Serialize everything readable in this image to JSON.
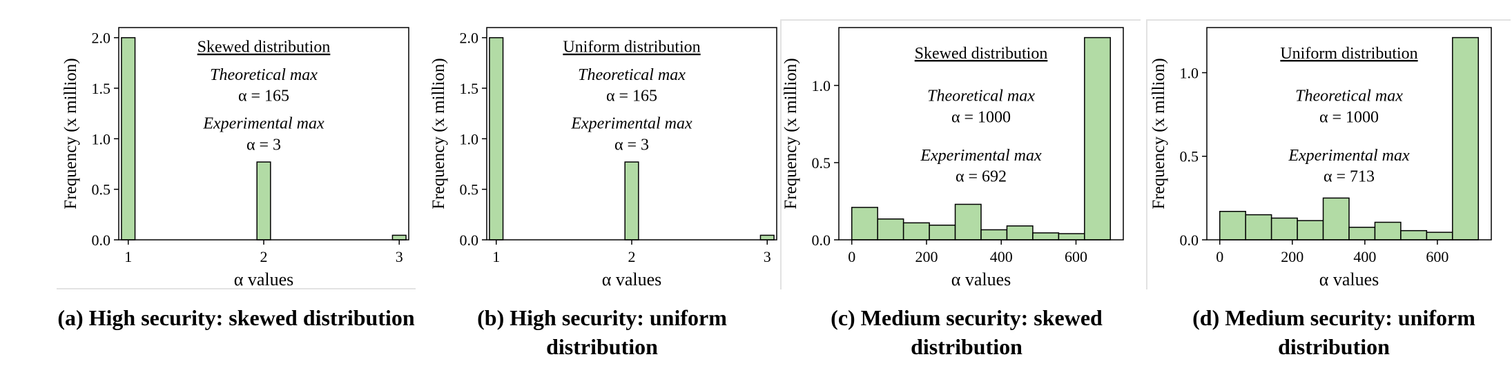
{
  "chart_data": [
    {
      "type": "bar",
      "x": [
        1,
        2,
        3
      ],
      "values": [
        2.0,
        0.77,
        0.045
      ],
      "bar_width": 0.1,
      "xlim": [
        0.93,
        3.07
      ],
      "ylim": [
        0,
        2.1
      ],
      "xticks": [
        1,
        2,
        3
      ],
      "yticks": [
        "0.0",
        "0.5",
        "1.0",
        "1.5",
        "2.0"
      ],
      "yticks_val": [
        0,
        0.5,
        1,
        1.5,
        2
      ],
      "xlabel": "α values",
      "ylabel": "Frequency (x million)",
      "inset_title": "Skewed distribution",
      "annotations": [
        "Theoretical max",
        "α = 165",
        "Experimental max",
        "α = 3"
      ],
      "bar_color": "#b2dba5",
      "grid": false
    },
    {
      "type": "bar",
      "x": [
        1,
        2,
        3
      ],
      "values": [
        2.0,
        0.77,
        0.045
      ],
      "bar_width": 0.1,
      "xlim": [
        0.93,
        3.07
      ],
      "ylim": [
        0,
        2.1
      ],
      "xticks": [
        1,
        2,
        3
      ],
      "yticks": [
        "0.0",
        "0.5",
        "1.0",
        "1.5",
        "2.0"
      ],
      "yticks_val": [
        0,
        0.5,
        1,
        1.5,
        2
      ],
      "xlabel": "α values",
      "ylabel": "Frequency (x million)",
      "inset_title": "Uniform distribution",
      "annotations": [
        "Theoretical max",
        "α = 165",
        "Experimental max",
        "α = 3"
      ],
      "bar_color": "#b2dba5",
      "grid": false
    },
    {
      "type": "histogram",
      "bin_edges": [
        0,
        69.2,
        138.4,
        207.6,
        276.8,
        346,
        415.2,
        484.4,
        553.6,
        622.8,
        692
      ],
      "values": [
        0.21,
        0.135,
        0.11,
        0.095,
        0.23,
        0.065,
        0.09,
        0.045,
        0.04,
        1.31
      ],
      "xlim": [
        -34.6,
        726.6
      ],
      "ylim": [
        0,
        1.375
      ],
      "xticks": [
        0,
        200,
        400,
        600
      ],
      "yticks": [
        "0.0",
        "0.5",
        "1.0"
      ],
      "yticks_val": [
        0,
        0.5,
        1.0
      ],
      "xlabel": "α values",
      "ylabel": "Frequency (x million)",
      "inset_title": "Skewed distribution",
      "annotations": [
        "Theoretical max",
        "α = 1000",
        "Experimental max",
        "α = 692"
      ],
      "bar_color": "#b2dba5",
      "grid": false
    },
    {
      "type": "histogram",
      "bin_edges": [
        0,
        71.3,
        142.6,
        213.9,
        285.2,
        356.5,
        427.8,
        499.1,
        570.4,
        641.7,
        713
      ],
      "values": [
        0.17,
        0.15,
        0.13,
        0.115,
        0.25,
        0.075,
        0.105,
        0.055,
        0.045,
        1.21
      ],
      "xlim": [
        -35.65,
        748.65
      ],
      "ylim": [
        0,
        1.27
      ],
      "xticks": [
        0,
        200,
        400,
        600
      ],
      "yticks": [
        "0.0",
        "0.5",
        "1.0"
      ],
      "yticks_val": [
        0,
        0.5,
        1.0
      ],
      "xlabel": "α values",
      "ylabel": "Frequency (x million)",
      "inset_title": "Uniform distribution",
      "annotations": [
        "Theoretical max",
        "α = 1000",
        "Experimental max",
        "α = 713"
      ],
      "bar_color": "#b2dba5",
      "grid": false
    }
  ],
  "captions": [
    "(a) High security: skewed distribution",
    "(b) High security: uniform distribution",
    "(c) Medium security: skewed distribution",
    "(d) Medium security: uniform distribution"
  ]
}
